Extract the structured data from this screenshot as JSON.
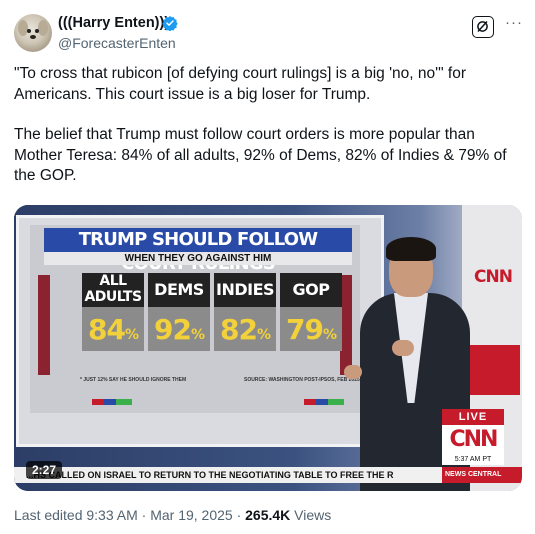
{
  "author": {
    "display_name": "(((Harry Enten)))",
    "handle": "@ForecasterEnten",
    "verified_icon": "verified-badge-icon",
    "avatar_icon": "dog-avatar"
  },
  "header_actions": {
    "grok_icon": "grok-icon",
    "more_icon": "more-dots-icon",
    "more_label": "···"
  },
  "tweet": {
    "paragraph_1": "\"To cross that rubicon [of defying court rulings] is a big 'no, no'\" for Americans. This court issue is a big loser for Trump.",
    "paragraph_2": "The belief that Trump must follow court orders is more popular than Mother Teresa: 84% of all adults, 92% of Dems, 82% of Indies & 79% of the GOP."
  },
  "video": {
    "duration": "2:27",
    "screen": {
      "title": "TRUMP SHOULD FOLLOW COURT RULINGS",
      "subtitle": "WHEN THEY GO AGAINST HIM",
      "columns": [
        {
          "label_line1": "ALL",
          "label_line2": "ADULTS",
          "value": "84",
          "unit": "%"
        },
        {
          "label_line1": "DEMS",
          "label_line2": "",
          "value": "92",
          "unit": "%"
        },
        {
          "label_line1": "INDIES",
          "label_line2": "",
          "value": "82",
          "unit": "%"
        },
        {
          "label_line1": "GOP",
          "label_line2": "",
          "value": "79",
          "unit": "%"
        }
      ],
      "footnote": "* JUST 12% SAY HE SHOULD IGNORE THEM",
      "source": "SOURCE: WASHINGTON POST-IPSOS, FEB 2025"
    },
    "studio_logo": "CNN",
    "live_label": "LIVE",
    "live_logo": "CNN",
    "live_time": "5:37 AM PT",
    "ticker": "...HS CALLED ON ISRAEL TO RETURN TO THE NEGOTIATING TABLE TO FREE THE R",
    "ticker_tag": "NEWS CENTRAL"
  },
  "meta": {
    "edited": "Last edited 9:33 AM · Mar 19, 2025 · ",
    "views_count": "265.4K",
    "views_label": " Views"
  }
}
